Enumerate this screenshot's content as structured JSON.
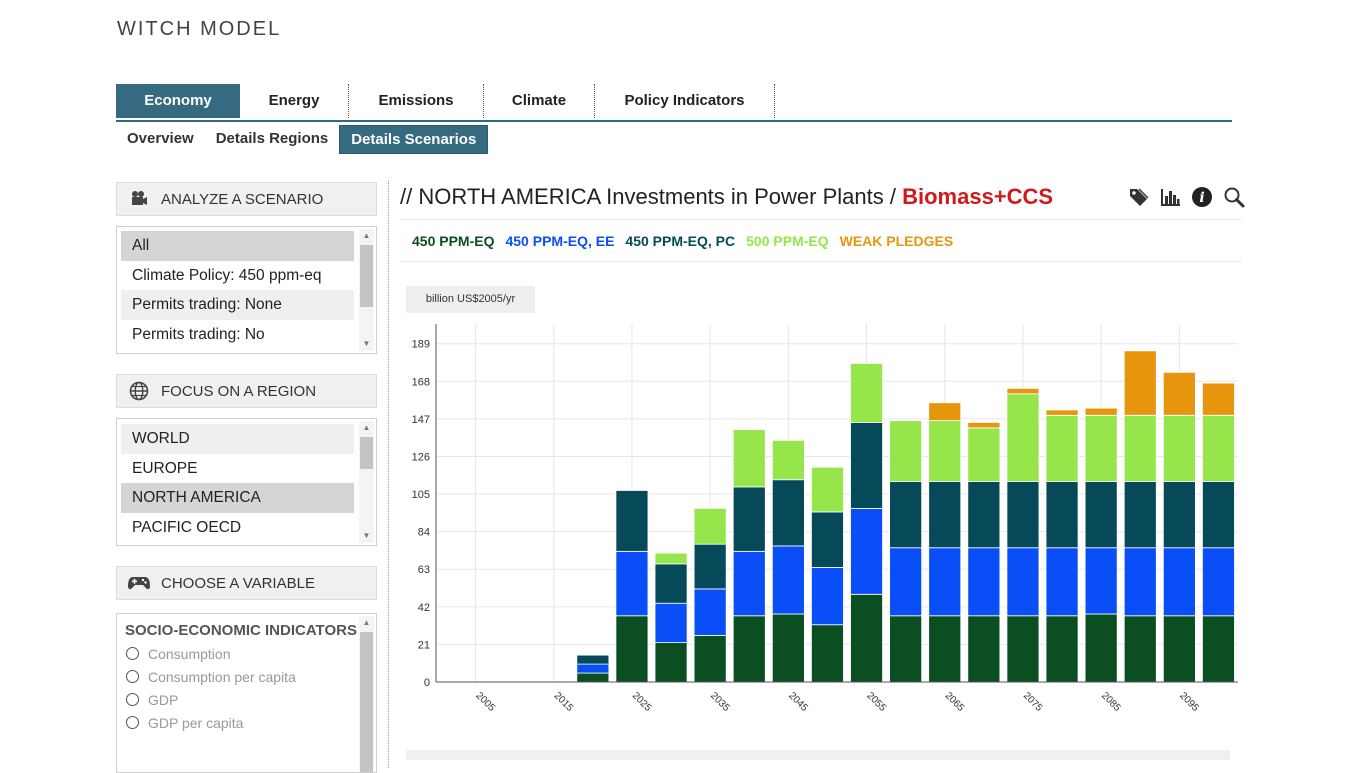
{
  "brand": "WITCH MODEL",
  "main_tabs": [
    "Economy",
    "Energy",
    "Emissions",
    "Climate",
    "Policy Indicators"
  ],
  "sub_tabs": [
    "Overview",
    "Details Regions",
    "Details Scenarios"
  ],
  "sidebar": {
    "scenario": {
      "title": "ANALYZE A SCENARIO",
      "items": [
        "All",
        "Climate Policy: 450 ppm-eq",
        "Permits trading: None",
        "Permits trading: No"
      ],
      "selected": "All"
    },
    "region": {
      "title": "FOCUS ON A REGION",
      "items": [
        "WORLD",
        "EUROPE",
        "NORTH AMERICA",
        "PACIFIC OECD"
      ],
      "selected": "NORTH AMERICA"
    },
    "variable": {
      "title": "CHOOSE A VARIABLE",
      "group": "SOCIO-ECONOMIC INDICATORS",
      "options": [
        "Consumption",
        "Consumption per capita",
        "GDP",
        "GDP per capita"
      ]
    }
  },
  "panel": {
    "title_prefix": "// NORTH AMERICA Investments in Power Plants / ",
    "title_highlight": "Biomass+CCS",
    "unit": "billion US$2005/yr",
    "icons": [
      "tag-icon",
      "bar-chart-icon",
      "info-icon",
      "zoom-icon"
    ]
  },
  "colors": {
    "accent": "#356a80",
    "highlight": "#d0191c"
  },
  "chart_data": {
    "type": "bar",
    "stacked": true,
    "x": [
      2005,
      2010,
      2015,
      2020,
      2025,
      2030,
      2035,
      2040,
      2045,
      2050,
      2055,
      2060,
      2065,
      2070,
      2075,
      2080,
      2085,
      2090,
      2095,
      2100
    ],
    "x_tick_labels": [
      "2005",
      "2015",
      "2025",
      "2035",
      "2045",
      "2055",
      "2065",
      "2075",
      "2085",
      "2095"
    ],
    "y_ticks": [
      0,
      21,
      42,
      63,
      84,
      105,
      126,
      147,
      168,
      189
    ],
    "ylim": [
      0,
      200
    ],
    "ylabel": "billion US$2005/yr",
    "grid": true,
    "series": [
      {
        "name": "450 PPM-EQ",
        "color": "#0a4e22",
        "values": [
          0,
          0,
          0,
          5,
          37,
          22,
          26,
          37,
          38,
          32,
          49,
          37,
          37,
          37,
          37,
          37,
          38,
          37,
          37,
          37
        ]
      },
      {
        "name": "450 PPM-EQ, EE",
        "color": "#0a4ef8",
        "values": [
          0,
          0,
          0,
          5,
          36,
          22,
          26,
          36,
          38,
          32,
          48,
          38,
          38,
          38,
          38,
          38,
          37,
          38,
          38,
          38
        ]
      },
      {
        "name": "450 PPM-EQ, PC",
        "color": "#064a5a",
        "values": [
          0,
          0,
          0,
          5,
          34,
          22,
          25,
          36,
          37,
          31,
          48,
          37,
          37,
          37,
          37,
          37,
          37,
          37,
          37,
          37
        ]
      },
      {
        "name": "500 PPM-EQ",
        "color": "#96e64b",
        "values": [
          0,
          0,
          0,
          0,
          0,
          6,
          20,
          32,
          22,
          25,
          33,
          34,
          34,
          30,
          49,
          37,
          37,
          37,
          37,
          37
        ]
      },
      {
        "name": "WEAK PLEDGES",
        "color": "#e8950e",
        "values": [
          0,
          0,
          0,
          0,
          0,
          0,
          0,
          0,
          0,
          0,
          0,
          0,
          10,
          3,
          3,
          3,
          4,
          36,
          24,
          18
        ]
      }
    ]
  }
}
